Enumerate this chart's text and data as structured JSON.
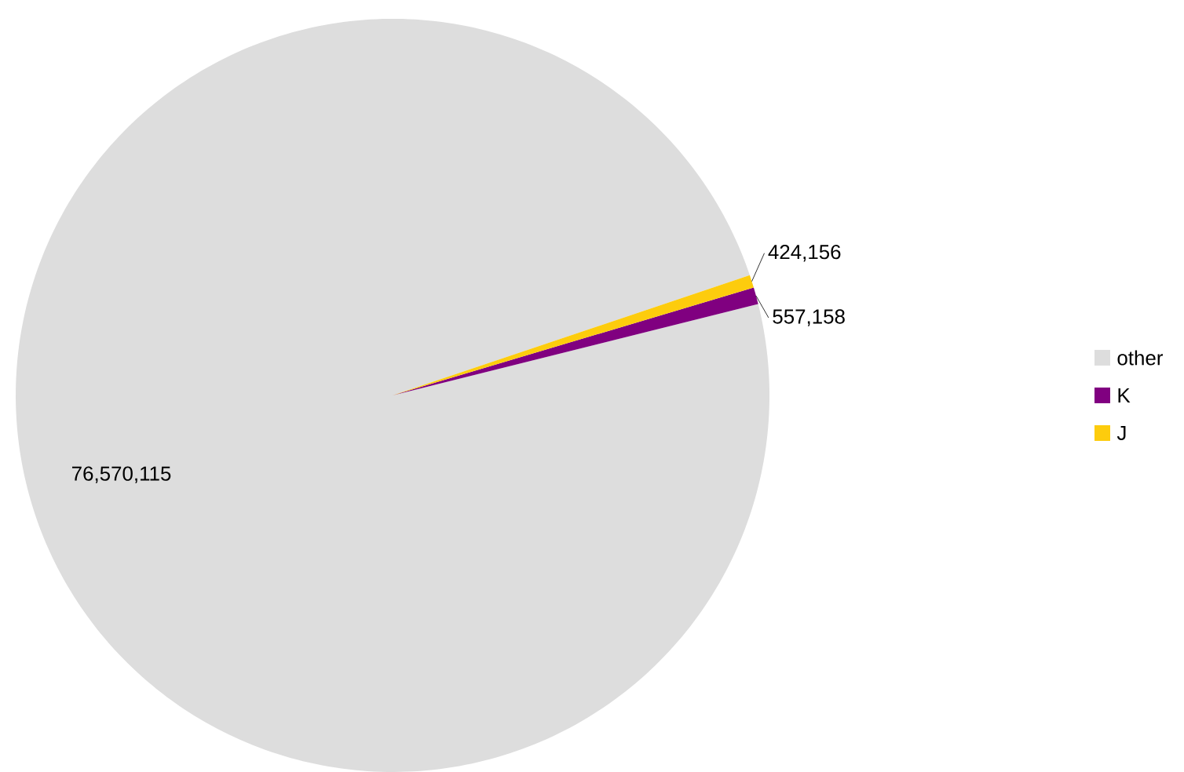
{
  "chart_data": {
    "type": "pie",
    "categories": [
      "other",
      "K",
      "J"
    ],
    "values": [
      76570115,
      557158,
      424156
    ],
    "value_labels": [
      "76,570,115",
      "557,158",
      "424,156"
    ],
    "colors": [
      "#dddddd",
      "#800080",
      "#fdcc0d"
    ],
    "legend": "right"
  }
}
